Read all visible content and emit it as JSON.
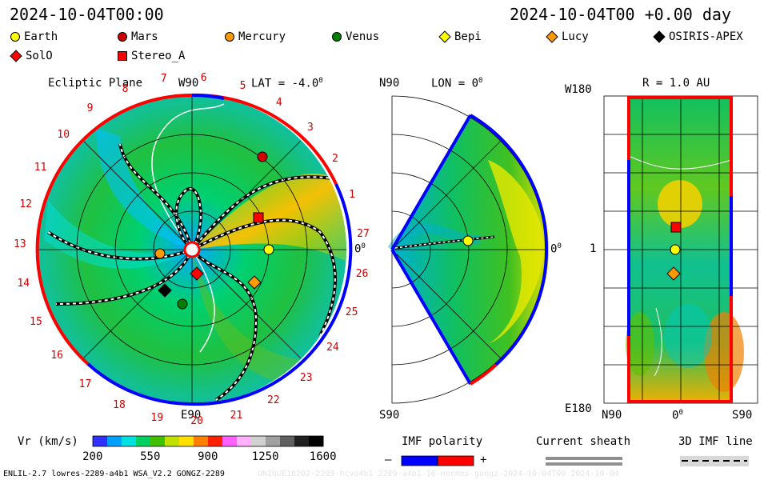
{
  "header": {
    "left_date": "2024-10-04T00:00",
    "right_date": "2024-10-04T00 +0.00 day"
  },
  "legend": [
    {
      "name": "Earth",
      "marker": "circle",
      "color": "#ffff00"
    },
    {
      "name": "Mars",
      "marker": "circle",
      "color": "#d00000"
    },
    {
      "name": "Mercury",
      "marker": "circle",
      "color": "#ff9900"
    },
    {
      "name": "Venus",
      "marker": "circle",
      "color": "#008000"
    },
    {
      "name": "Bepi",
      "marker": "diamond",
      "color": "#ffff00"
    },
    {
      "name": "Lucy",
      "marker": "diamond",
      "color": "#ff9900"
    },
    {
      "name": "OSIRIS-APEX",
      "marker": "diamond",
      "color": "#000000"
    },
    {
      "name": "SolO",
      "marker": "diamond",
      "color": "#ff0000"
    },
    {
      "name": "Stereo_A",
      "marker": "square",
      "color": "#ff0000"
    }
  ],
  "panel_ecliptic": {
    "title": "Ecliptic Plane",
    "lat": "LAT = -4.0",
    "deg": "0",
    "top_label": "W90",
    "bottom_label": "E90",
    "right_label": "0",
    "right_deg": "0",
    "ticks": [
      "1",
      "2",
      "3",
      "4",
      "5",
      "6",
      "7",
      "8",
      "9",
      "10",
      "11",
      "12",
      "13",
      "14",
      "15",
      "16",
      "17",
      "18",
      "19",
      "20",
      "21",
      "22",
      "23",
      "24",
      "25",
      "26",
      "27"
    ]
  },
  "panel_meridional": {
    "top_label": "N90",
    "lon": "LON = 0",
    "deg": "0",
    "bottom_label": "S90",
    "right_label": "0",
    "right_deg": "0"
  },
  "panel_radial": {
    "top_left": "W180",
    "title": "R = 1.0 AU",
    "mid_left": "1",
    "bottom_left": "E180",
    "bottom_n": "N90",
    "bottom_mid": "0",
    "bottom_deg": "0",
    "bottom_s": "S90"
  },
  "colorbar": {
    "label": "Vr (km/s)",
    "ticks": [
      "200",
      "550",
      "900",
      "1250",
      "1600"
    ],
    "colors": [
      "#3030ff",
      "#00a0ff",
      "#00e0e0",
      "#00d060",
      "#40c000",
      "#c0e000",
      "#ffe000",
      "#ff8000",
      "#ff2000",
      "#ff60ff",
      "#ffb0ff",
      "#d0d0d0",
      "#a0a0a0",
      "#606060",
      "#202020",
      "#000000"
    ]
  },
  "imf_polarity": {
    "label": "IMF polarity",
    "minus": "–",
    "plus": "+",
    "neg_color": "#0000ff",
    "pos_color": "#ff0000"
  },
  "current_sheath": {
    "label": "Current sheath"
  },
  "imf_line": {
    "label": "3D IMF line"
  },
  "footer": {
    "left": "ENLIL-2.7 lowres-2289-a4b1 WSA_V2.2 GONGZ-2289",
    "right": "UNIQUE10202-2289-hcvo4b1 2289-a4b1-16-nocmes-gongz-2024-10-04T00 2024-10-04"
  }
}
